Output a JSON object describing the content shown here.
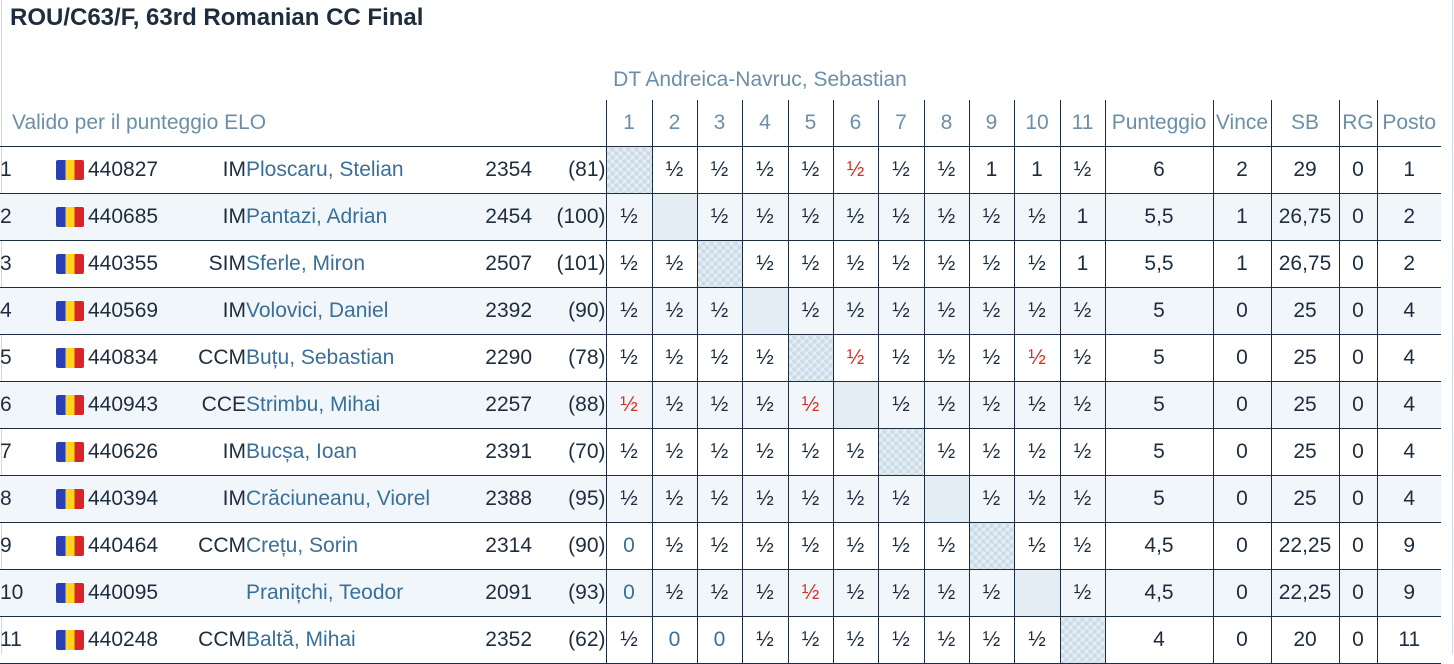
{
  "title": "ROU/C63/F, 63rd Romanian CC Final",
  "director": "DT Andreica-Navruc, Sebastian",
  "header": {
    "elo_label": "Valido per il punteggio ELO",
    "rounds": [
      "1",
      "2",
      "3",
      "4",
      "5",
      "6",
      "7",
      "8",
      "9",
      "10",
      "11"
    ],
    "score": "Punteggio",
    "wins": "Vince",
    "sb": "SB",
    "rg": "RG",
    "place": "Posto"
  },
  "colors": {
    "red_result": "#d0342c",
    "name_blue": "#3a6f98"
  },
  "players": [
    {
      "num": "1",
      "flag": "romania-flag",
      "id": "440827",
      "title": "IM",
      "name": "Ploscaru, Stelian",
      "rating": "2354",
      "games": "(81)",
      "results": [
        "",
        "½",
        "½",
        "½",
        "½",
        "½",
        "½",
        "½",
        "1",
        "1",
        "½"
      ],
      "red": [
        5
      ],
      "self": 0,
      "score": "6",
      "wins": "2",
      "sb": "29",
      "rg": "0",
      "place": "1"
    },
    {
      "num": "2",
      "flag": "romania-flag",
      "id": "440685",
      "title": "IM",
      "name": "Pantazi, Adrian",
      "rating": "2454",
      "games": "(100)",
      "results": [
        "½",
        "",
        "½",
        "½",
        "½",
        "½",
        "½",
        "½",
        "½",
        "½",
        "1"
      ],
      "red": [],
      "self": 1,
      "score": "5,5",
      "wins": "1",
      "sb": "26,75",
      "rg": "0",
      "place": "2"
    },
    {
      "num": "3",
      "flag": "romania-flag",
      "id": "440355",
      "title": "SIM",
      "name": "Sferle, Miron",
      "rating": "2507",
      "games": "(101)",
      "results": [
        "½",
        "½",
        "",
        "½",
        "½",
        "½",
        "½",
        "½",
        "½",
        "½",
        "1"
      ],
      "red": [],
      "self": 2,
      "score": "5,5",
      "wins": "1",
      "sb": "26,75",
      "rg": "0",
      "place": "2"
    },
    {
      "num": "4",
      "flag": "romania-flag",
      "id": "440569",
      "title": "IM",
      "name": "Volovici, Daniel",
      "rating": "2392",
      "games": "(90)",
      "results": [
        "½",
        "½",
        "½",
        "",
        "½",
        "½",
        "½",
        "½",
        "½",
        "½",
        "½"
      ],
      "red": [],
      "self": 3,
      "score": "5",
      "wins": "0",
      "sb": "25",
      "rg": "0",
      "place": "4"
    },
    {
      "num": "5",
      "flag": "romania-flag",
      "id": "440834",
      "title": "CCM",
      "name": "Buțu, Sebastian",
      "rating": "2290",
      "games": "(78)",
      "results": [
        "½",
        "½",
        "½",
        "½",
        "",
        "½",
        "½",
        "½",
        "½",
        "½",
        "½"
      ],
      "red": [
        5,
        9
      ],
      "self": 4,
      "score": "5",
      "wins": "0",
      "sb": "25",
      "rg": "0",
      "place": "4"
    },
    {
      "num": "6",
      "flag": "romania-flag",
      "id": "440943",
      "title": "CCE",
      "name": "Strimbu, Mihai",
      "rating": "2257",
      "games": "(88)",
      "results": [
        "½",
        "½",
        "½",
        "½",
        "½",
        "",
        "½",
        "½",
        "½",
        "½",
        "½"
      ],
      "red": [
        0,
        4
      ],
      "self": 5,
      "score": "5",
      "wins": "0",
      "sb": "25",
      "rg": "0",
      "place": "4"
    },
    {
      "num": "7",
      "flag": "romania-flag",
      "id": "440626",
      "title": "IM",
      "name": "Bucșa, Ioan",
      "rating": "2391",
      "games": "(70)",
      "results": [
        "½",
        "½",
        "½",
        "½",
        "½",
        "½",
        "",
        "½",
        "½",
        "½",
        "½"
      ],
      "red": [],
      "self": 6,
      "score": "5",
      "wins": "0",
      "sb": "25",
      "rg": "0",
      "place": "4"
    },
    {
      "num": "8",
      "flag": "romania-flag",
      "id": "440394",
      "title": "IM",
      "name": "Crăciuneanu, Viorel",
      "rating": "2388",
      "games": "(95)",
      "results": [
        "½",
        "½",
        "½",
        "½",
        "½",
        "½",
        "½",
        "",
        "½",
        "½",
        "½"
      ],
      "red": [],
      "self": 7,
      "score": "5",
      "wins": "0",
      "sb": "25",
      "rg": "0",
      "place": "4"
    },
    {
      "num": "9",
      "flag": "romania-flag",
      "id": "440464",
      "title": "CCM",
      "name": "Crețu, Sorin",
      "rating": "2314",
      "games": "(90)",
      "results": [
        "0",
        "½",
        "½",
        "½",
        "½",
        "½",
        "½",
        "½",
        "",
        "½",
        "½"
      ],
      "red": [],
      "self": 8,
      "score": "4,5",
      "wins": "0",
      "sb": "22,25",
      "rg": "0",
      "place": "9"
    },
    {
      "num": "10",
      "flag": "romania-flag",
      "id": "440095",
      "title": "",
      "name": "Pranițchi, Teodor",
      "rating": "2091",
      "games": "(93)",
      "results": [
        "0",
        "½",
        "½",
        "½",
        "½",
        "½",
        "½",
        "½",
        "½",
        "",
        "½"
      ],
      "red": [
        4
      ],
      "self": 9,
      "score": "4,5",
      "wins": "0",
      "sb": "22,25",
      "rg": "0",
      "place": "9"
    },
    {
      "num": "11",
      "flag": "romania-flag",
      "id": "440248",
      "title": "CCM",
      "name": "Baltă, Mihai",
      "rating": "2352",
      "games": "(62)",
      "results": [
        "½",
        "0",
        "0",
        "½",
        "½",
        "½",
        "½",
        "½",
        "½",
        "½",
        ""
      ],
      "red": [],
      "self": 10,
      "score": "4",
      "wins": "0",
      "sb": "20",
      "rg": "0",
      "place": "11"
    }
  ]
}
